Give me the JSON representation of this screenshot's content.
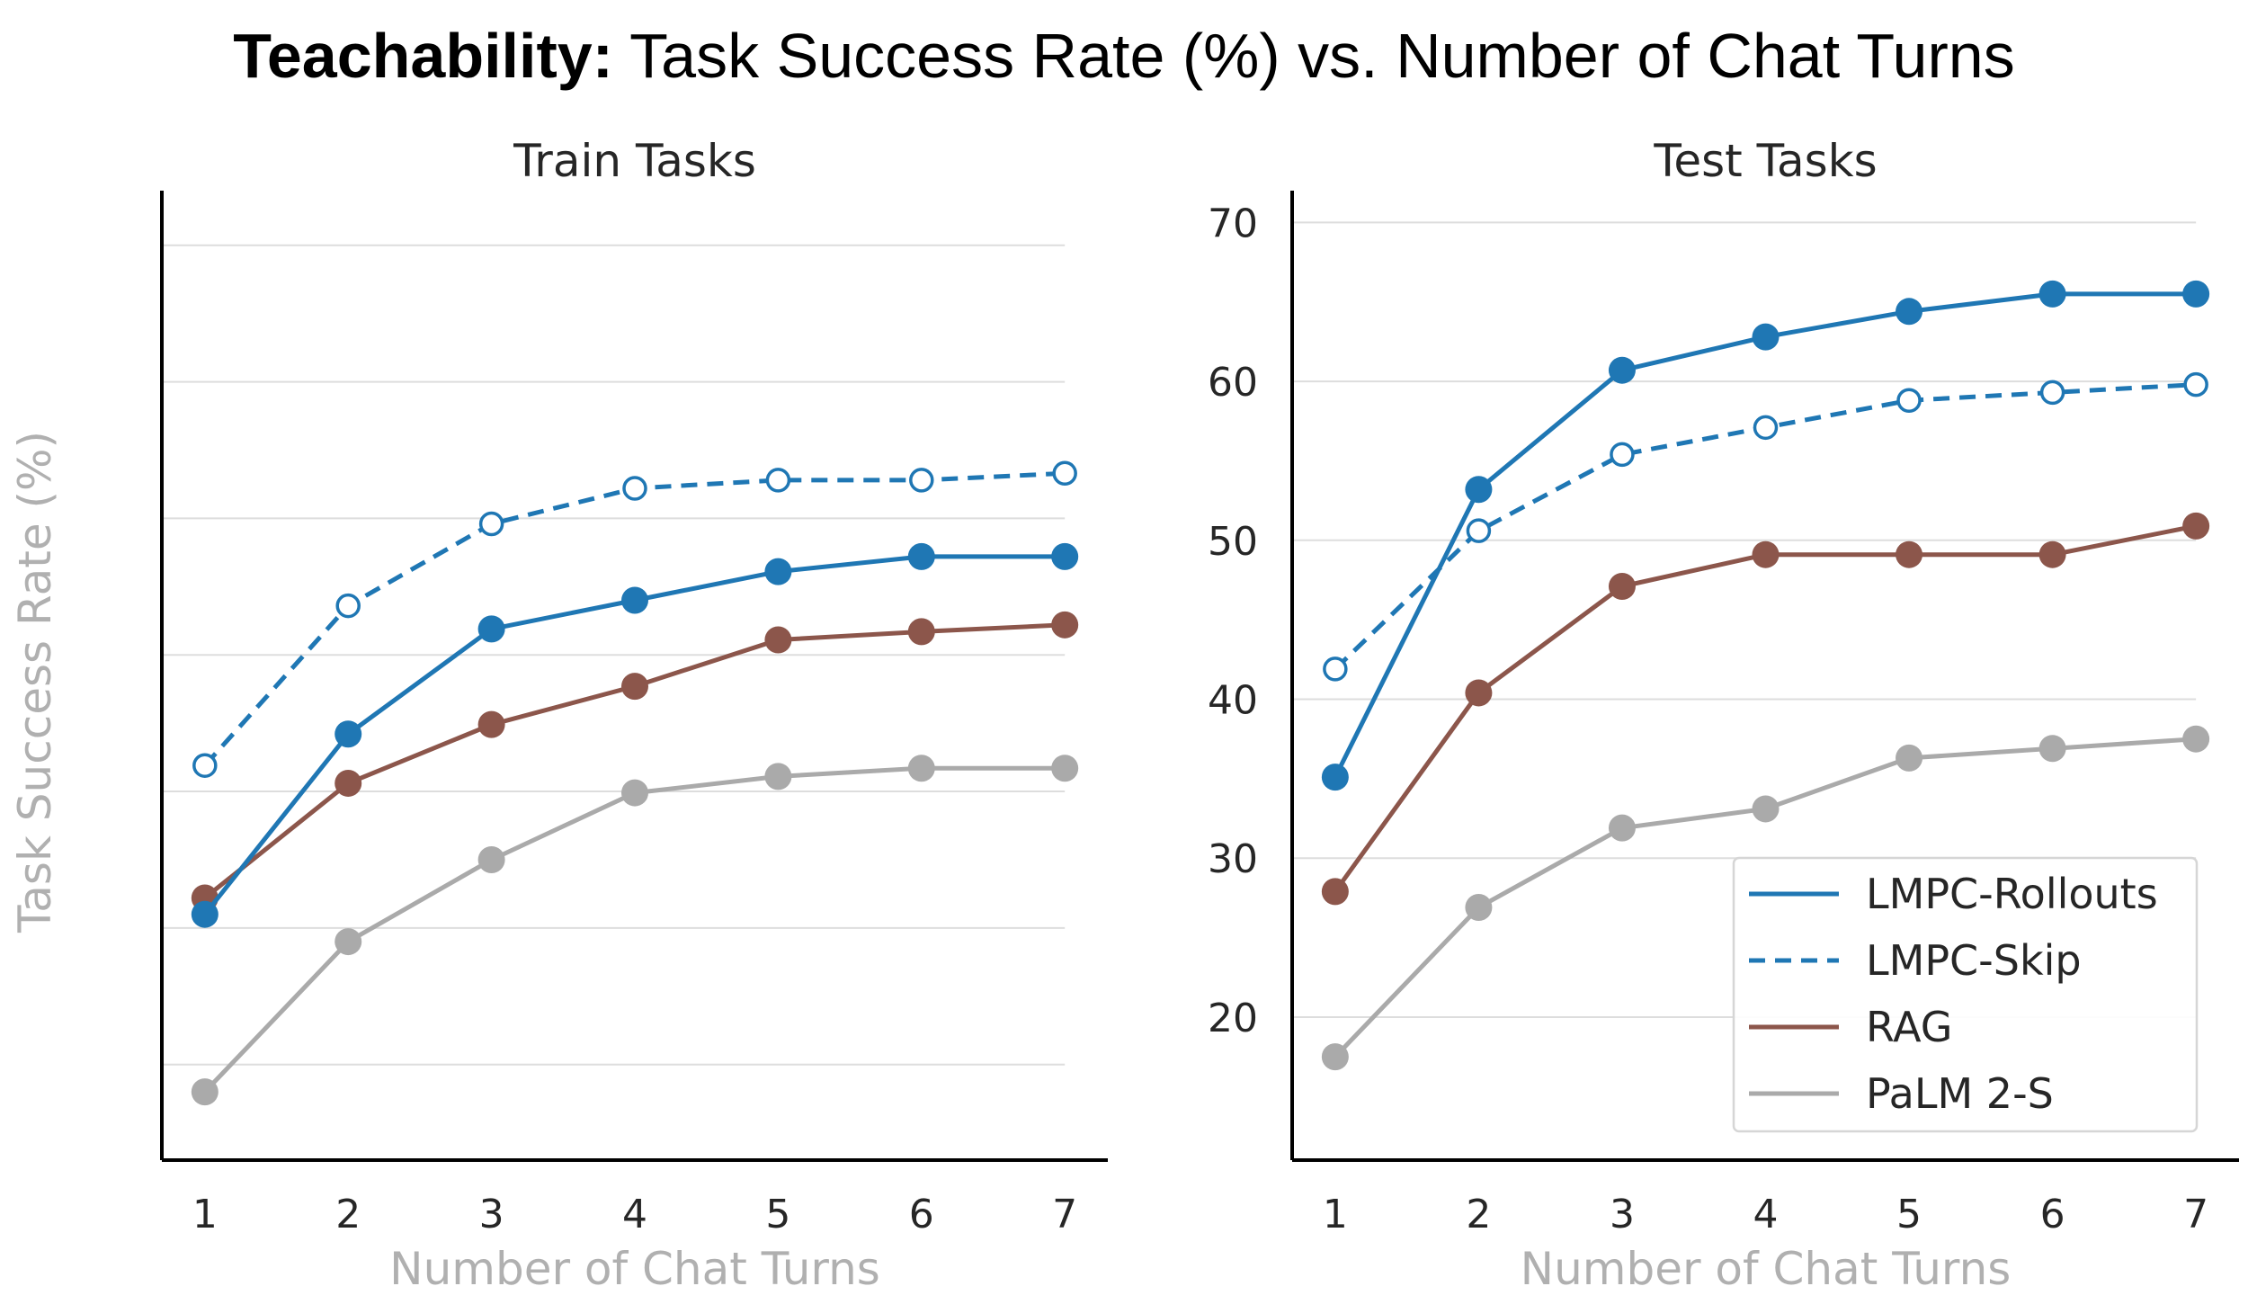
{
  "suptitle": {
    "bold": "Teachability:",
    "rest": " Task Success Rate (%) vs. Number of Chat Turns"
  },
  "ylabel": "Task Success Rate (%)",
  "chart_data": [
    {
      "type": "line",
      "title": "Train Tasks",
      "xlabel": "Number of Chat Turns",
      "x": [
        1,
        2,
        3,
        4,
        5,
        6,
        7
      ],
      "xlim": [
        0.7,
        7.3
      ],
      "ylim": [
        3,
        74
      ],
      "yticks": [
        10,
        20,
        30,
        40,
        50,
        60,
        70
      ],
      "show_ytick_labels": false,
      "grid": true,
      "series": [
        {
          "name": "LMPC-Rollouts",
          "values": [
            21.0,
            34.2,
            41.9,
            44.0,
            46.1,
            47.2,
            47.2
          ],
          "color": "#1f77b4",
          "style": "solid",
          "marker": "filled"
        },
        {
          "name": "LMPC-Skip",
          "values": [
            31.9,
            43.6,
            49.6,
            52.2,
            52.8,
            52.8,
            53.3
          ],
          "color": "#1f77b4",
          "style": "dashed",
          "marker": "hollow"
        },
        {
          "name": "RAG",
          "values": [
            22.2,
            30.6,
            34.9,
            37.7,
            41.1,
            41.7,
            42.2
          ],
          "color": "#8c564b",
          "style": "solid",
          "marker": "filled"
        },
        {
          "name": "PaLM 2-S",
          "values": [
            8.0,
            19.0,
            25.0,
            29.9,
            31.1,
            31.7,
            31.7
          ],
          "color": "#aaaaaa",
          "style": "solid",
          "marker": "filled"
        }
      ]
    },
    {
      "type": "line",
      "title": "Test Tasks",
      "xlabel": "Number of Chat Turns",
      "x": [
        1,
        2,
        3,
        4,
        5,
        6,
        7
      ],
      "xlim": [
        0.7,
        7.3
      ],
      "ylim": [
        11,
        72
      ],
      "yticks": [
        20,
        30,
        40,
        50,
        60,
        70
      ],
      "show_ytick_labels": true,
      "grid": true,
      "legend": "lower-right",
      "series": [
        {
          "name": "LMPC-Rollouts",
          "values": [
            35.1,
            53.2,
            60.7,
            62.8,
            64.4,
            65.5,
            65.5
          ],
          "color": "#1f77b4",
          "style": "solid",
          "marker": "filled"
        },
        {
          "name": "LMPC-Skip",
          "values": [
            41.9,
            50.6,
            55.4,
            57.1,
            58.8,
            59.3,
            59.8
          ],
          "color": "#1f77b4",
          "style": "dashed",
          "marker": "hollow"
        },
        {
          "name": "RAG",
          "values": [
            27.9,
            40.4,
            47.1,
            49.1,
            49.1,
            49.1,
            50.9
          ],
          "color": "#8c564b",
          "style": "solid",
          "marker": "filled"
        },
        {
          "name": "PaLM 2-S",
          "values": [
            17.5,
            26.9,
            31.9,
            33.1,
            36.3,
            36.9,
            37.5
          ],
          "color": "#aaaaaa",
          "style": "solid",
          "marker": "filled"
        }
      ]
    }
  ]
}
